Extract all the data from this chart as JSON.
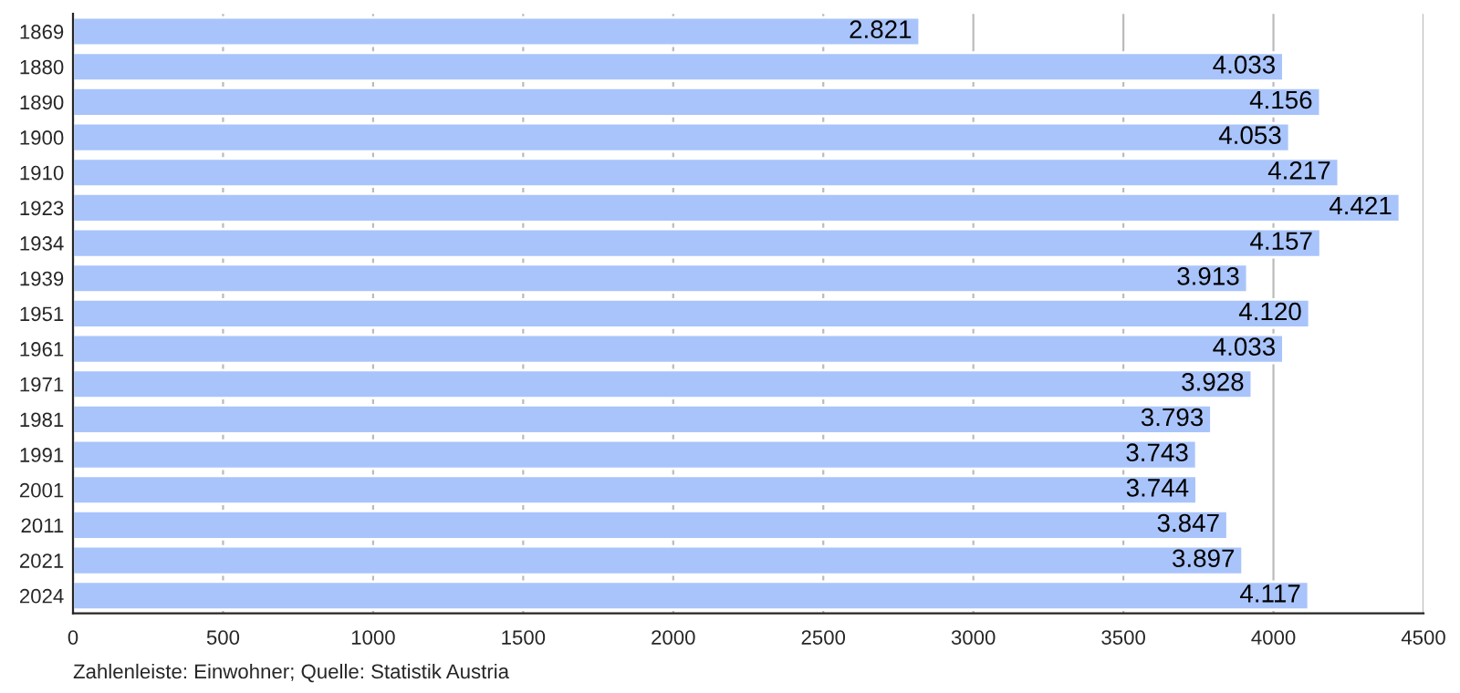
{
  "chart_data": {
    "type": "bar",
    "orientation": "horizontal",
    "categories": [
      "1869",
      "1880",
      "1890",
      "1900",
      "1910",
      "1923",
      "1934",
      "1939",
      "1951",
      "1961",
      "1971",
      "1981",
      "1991",
      "2001",
      "2011",
      "2021",
      "2024"
    ],
    "values": [
      2821,
      4033,
      4156,
      4053,
      4217,
      4421,
      4157,
      3913,
      4120,
      4033,
      3928,
      3793,
      3743,
      3744,
      3847,
      3897,
      4117
    ],
    "value_labels": [
      "2.821",
      "4.033",
      "4.156",
      "4.053",
      "4.217",
      "4.421",
      "4.157",
      "3.913",
      "4.120",
      "4.033",
      "3.928",
      "3.793",
      "3.743",
      "3.744",
      "3.847",
      "3.897",
      "4.117"
    ],
    "color": "#a9c4fb",
    "xlim": [
      0,
      4500
    ],
    "xticks": [
      0,
      500,
      1000,
      1500,
      2000,
      2500,
      3000,
      3500,
      4000,
      4500
    ],
    "grid": "x",
    "annotations": [
      "Zahlenleiste: Einwohner; Quelle: Statistik Austria"
    ]
  }
}
